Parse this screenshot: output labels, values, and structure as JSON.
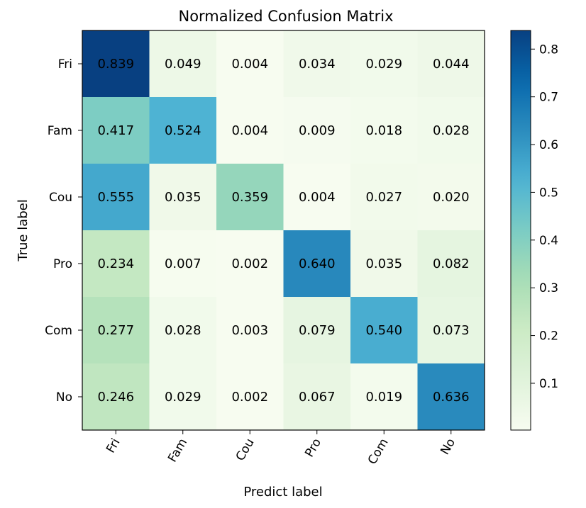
{
  "chart_data": {
    "type": "heatmap",
    "title": "Normalized Confusion Matrix",
    "xlabel": "Predict label",
    "ylabel": "True label",
    "x_categories": [
      "Fri",
      "Fam",
      "Cou",
      "Pro",
      "Com",
      "No"
    ],
    "y_categories": [
      "Fri",
      "Fam",
      "Cou",
      "Pro",
      "Com",
      "No"
    ],
    "values": [
      [
        0.839,
        0.049,
        0.004,
        0.034,
        0.029,
        0.044
      ],
      [
        0.417,
        0.524,
        0.004,
        0.009,
        0.018,
        0.028
      ],
      [
        0.555,
        0.035,
        0.359,
        0.004,
        0.027,
        0.02
      ],
      [
        0.234,
        0.007,
        0.002,
        0.64,
        0.035,
        0.082
      ],
      [
        0.277,
        0.028,
        0.003,
        0.079,
        0.54,
        0.073
      ],
      [
        0.246,
        0.029,
        0.002,
        0.067,
        0.019,
        0.636
      ]
    ],
    "colormap": "GnBu",
    "colorbar": {
      "range": [
        0.002,
        0.839
      ],
      "ticks": [
        0.1,
        0.2,
        0.3,
        0.4,
        0.5,
        0.6,
        0.7,
        0.8
      ],
      "tick_labels": [
        "0.1",
        "0.2",
        "0.3",
        "0.4",
        "0.5",
        "0.6",
        "0.7",
        "0.8"
      ]
    },
    "grid": false
  }
}
